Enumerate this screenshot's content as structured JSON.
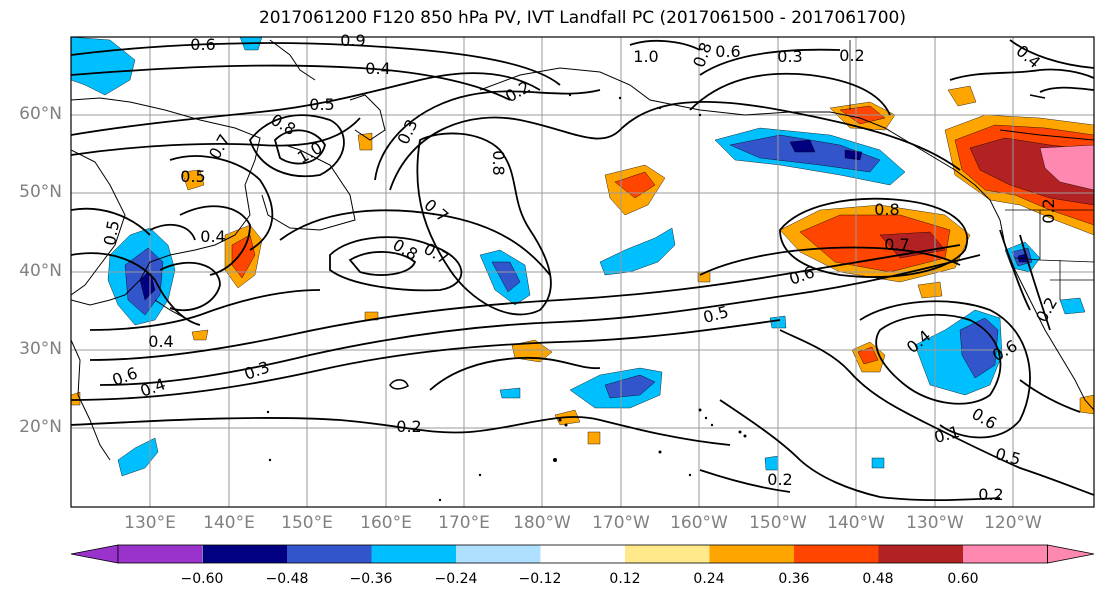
{
  "title": "2017061200 F120 850 hPa PV, IVT Landfall PC (2017061500 - 2017061700)",
  "lat_labels": [
    "60°N",
    "50°N",
    "40°N",
    "30°N",
    "20°N"
  ],
  "lon_labels": [
    "130°E",
    "140°E",
    "150°E",
    "160°E",
    "170°E",
    "180°W",
    "170°W",
    "160°W",
    "150°W",
    "140°W",
    "130°W",
    "120°W"
  ],
  "colorbar": {
    "ticks": [
      "−0.60",
      "−0.48",
      "−0.36",
      "−0.24",
      "−0.12",
      "0.12",
      "0.24",
      "0.36",
      "0.48",
      "0.60"
    ],
    "colors": [
      "#9933cc",
      "#000080",
      "#3355cc",
      "#00bfff",
      "#b0e0ff",
      "#ffffff",
      "#ffe98a",
      "#ffa500",
      "#ff4500",
      "#b22222",
      "#ff88b0"
    ]
  },
  "contour_labels": [
    "0.6",
    "0.9",
    "0.4",
    "0.5",
    "0.2",
    "1.0",
    "0.8",
    "0.6",
    "0.3",
    "0.2",
    "0.4",
    "0.8",
    "1.0",
    "0.3",
    "0.7",
    "0.5",
    "0.5",
    "0.4",
    "0.8",
    "0.7",
    "0.8",
    "0.7",
    "0.6",
    "0.5",
    "0.4",
    "0.6",
    "0.4",
    "0.3",
    "0.2",
    "0.8",
    "0.7",
    "0.2",
    "0.4",
    "0.6",
    "0.6",
    "0.1",
    "0.5",
    "0.2",
    "0.2",
    "0.2"
  ]
}
